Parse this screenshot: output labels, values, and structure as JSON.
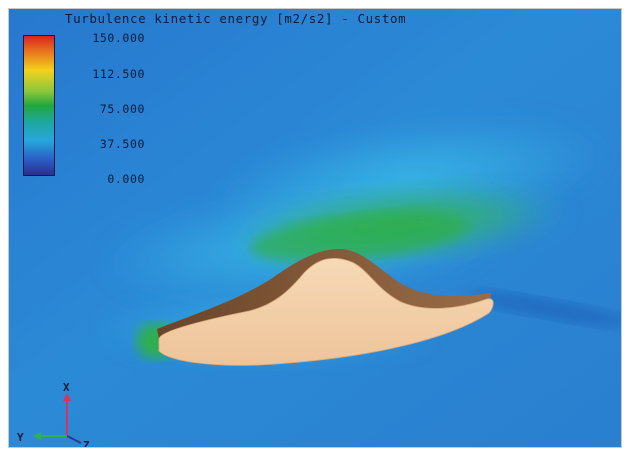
{
  "legend": {
    "title": "Turbulence kinetic energy [m2/s2] - Custom",
    "ticks": [
      "150.000",
      "112.500",
      "75.000",
      "37.500",
      "0.000"
    ],
    "colormap": [
      "#d81e1e",
      "#f3d21c",
      "#22a83c",
      "#27a6dc",
      "#2d2a8a"
    ]
  },
  "axes": {
    "labels": {
      "x": "X",
      "y": "Y",
      "z": "Z"
    },
    "colors": {
      "x": "#e0305a",
      "y": "#2fb34a",
      "z": "#2a3a8a"
    }
  },
  "scene": {
    "background_color": "#2a8fd4",
    "object_color": "#f2cfa8",
    "object_shadow_color": "#8a5e3c"
  }
}
